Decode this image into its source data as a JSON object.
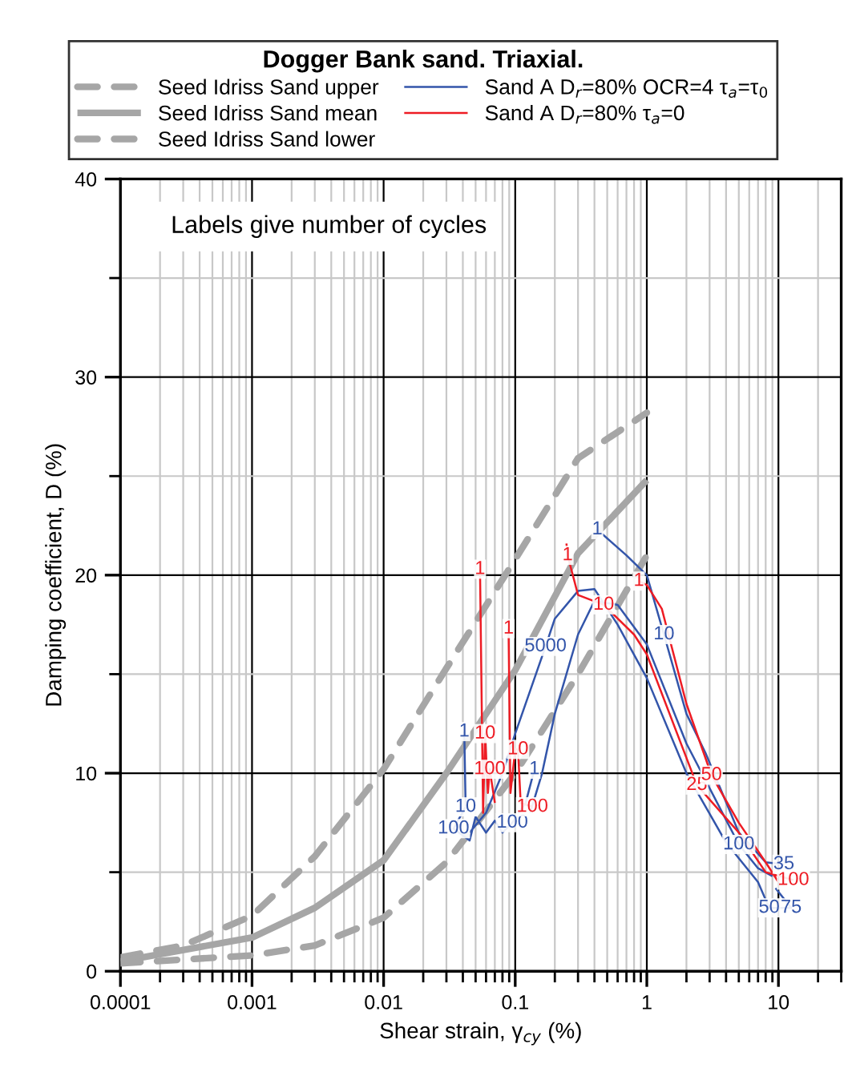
{
  "chart_data": {
    "type": "line",
    "title": "Dogger Bank sand. Triaxial.",
    "xlabel": "Shear strain, γ$_{cy}$ (%)",
    "ylabel": "Damping coefficient, D (%)",
    "log": "x",
    "xlim": [
      0.0001,
      30
    ],
    "ylim": [
      0,
      40
    ],
    "xticks": [
      {
        "value": 0.0001,
        "label": "0.0001"
      },
      {
        "value": 0.001,
        "label": "0.001"
      },
      {
        "value": 0.01,
        "label": "0.01"
      },
      {
        "value": 0.1,
        "label": "0.1"
      },
      1,
      10
    ],
    "yticks": [
      0,
      {
        "value": 5,
        "label": null
      },
      10,
      {
        "value": 15,
        "label": null
      },
      20,
      {
        "value": 25,
        "label": null
      },
      30,
      {
        "value": 35,
        "label": null
      },
      40
    ],
    "grid": true,
    "legend": "top",
    "marker": "none",
    "series": [
      {
        "name": "Seed Idriss Sand upper",
        "color": "#a6a6a6",
        "line_style": "dashed",
        "x": [
          0.0001,
          0.0003,
          0.001,
          0.003,
          0.01,
          0.03,
          0.1,
          0.3,
          1
        ],
        "values": [
          0.7,
          1.3,
          2.8,
          5.8,
          10.2,
          15.3,
          20.8,
          25.9,
          28.2
        ]
      },
      {
        "name": "Seed Idriss Sand mean",
        "color": "#a6a6a6",
        "line_style": "solid",
        "x": [
          0.0001,
          0.001,
          0.003,
          0.01,
          0.03,
          0.1,
          0.3,
          1
        ],
        "values": [
          0.5,
          1.7,
          3.2,
          5.6,
          10,
          15.2,
          21.1,
          24.8
        ]
      },
      {
        "name": "Seed Idriss Sand lower",
        "color": "#a6a6a6",
        "line_style": "dashed",
        "x": [
          0.0001,
          0.001,
          0.003,
          0.01,
          0.03,
          0.1,
          0.3,
          1
        ],
        "values": [
          0.4,
          0.8,
          1.3,
          2.7,
          5.5,
          10,
          15,
          21
        ]
      },
      {
        "name": "Sand A D$_{r}$=80% OCR=4 τ$_{a}$=τ$_{0}$",
        "color": "#3355aa",
        "line_style": "solid",
        "x": [
          0.041,
          0.042,
          0.034,
          0.045,
          0.05,
          0.06,
          0.07,
          0.08,
          0.095,
          0.12,
          0.14,
          null,
          0.045,
          0.06,
          0.08,
          0.1,
          0.17,
          0.2,
          0.3,
          0.4,
          0.6,
          1,
          2,
          4,
          7,
          8.5,
          12.5,
          9.5,
          null,
          0.13,
          0.16,
          0.2,
          0.3,
          0.4,
          0.6,
          1,
          2,
          5,
          7,
          9,
          null,
          0.42,
          0.7,
          1,
          1.35,
          2,
          2.8,
          5,
          8,
          11
        ],
        "values": [
          12.1,
          8.3,
          7.2,
          6.6,
          7.8,
          7,
          7.6,
          7,
          7.5,
          8.5,
          10.2,
          null,
          7,
          8,
          10,
          12,
          16.4,
          17.8,
          19.2,
          19.3,
          17.5,
          14.8,
          10,
          6.5,
          4.5,
          3.2,
          3.2,
          4.2,
          null,
          8,
          10,
          13,
          17,
          18.7,
          18.5,
          16.5,
          11.5,
          6.4,
          5.2,
          4.8,
          null,
          22.3,
          21,
          20,
          17,
          13,
          11,
          7,
          5.5,
          5.4
        ]
      },
      {
        "name": "Sand A D$_{r}$=80% τ$_{a}$=0",
        "color": "#ee1c24",
        "line_style": "solid",
        "x": [
          0.054,
          0.057,
          0.059,
          0.062,
          0.064,
          0.07,
          null,
          0.089,
          0.092,
          0.1,
          0.105,
          0.11,
          0.135,
          null,
          0.245,
          0.25,
          0.3,
          0.47,
          0.8,
          1,
          2.4,
          5,
          8,
          13,
          null,
          0.87,
          1,
          1.3,
          2,
          3.1,
          5,
          8,
          10
        ],
        "values": [
          20.3,
          8,
          12,
          9,
          10.2,
          8.5,
          null,
          17.3,
          9,
          11.2,
          11.2,
          8.5,
          8.3,
          null,
          21.6,
          21,
          19,
          18.5,
          17,
          16,
          9.4,
          7,
          5,
          4.6,
          null,
          19.7,
          19.5,
          18.3,
          13.5,
          9.9,
          7.5,
          5.5,
          4.5
        ]
      }
    ],
    "annotations": [
      "Labels give number of cycles",
      {
        "text": "1",
        "x": 0.041,
        "y": 12.1
      },
      {
        "text": "10",
        "x": 0.042,
        "y": 8.3
      },
      {
        "text": "100",
        "x": 0.034,
        "y": 7.2
      },
      {
        "text": "100",
        "x": 0.095,
        "y": 7.5
      },
      {
        "text": "1",
        "x": 0.14,
        "y": 10.2
      },
      {
        "text": "5000",
        "x": 0.17,
        "y": 16.4
      },
      {
        "text": "50",
        "x": 8.5,
        "y": 3.2
      },
      {
        "text": "75",
        "x": 12.5,
        "y": 3.2
      },
      {
        "text": "100",
        "x": 5,
        "y": 6.4
      },
      {
        "text": "1",
        "x": 0.42,
        "y": 22.3
      },
      {
        "text": "10",
        "x": 1.35,
        "y": 17
      },
      {
        "text": "35",
        "x": 11,
        "y": 5.4
      },
      {
        "text": "1",
        "x": 0.054,
        "y": 20.3
      },
      {
        "text": "10",
        "x": 0.059,
        "y": 12
      },
      {
        "text": "100",
        "x": 0.064,
        "y": 10.2
      },
      {
        "text": "1",
        "x": 0.089,
        "y": 17.3
      },
      {
        "text": "10",
        "x": 0.105,
        "y": 11.2
      },
      {
        "text": "100",
        "x": 0.135,
        "y": 8.3
      },
      {
        "text": "1",
        "x": 0.25,
        "y": 21
      },
      {
        "text": "10",
        "x": 0.47,
        "y": 18.5
      },
      {
        "text": "25",
        "x": 2.4,
        "y": 9.4
      },
      {
        "text": "100",
        "x": 13,
        "y": 4.6
      },
      {
        "text": "1",
        "x": 0.87,
        "y": 19.7
      },
      {
        "text": "50",
        "x": 3.1,
        "y": 9.9
      }
    ]
  }
}
